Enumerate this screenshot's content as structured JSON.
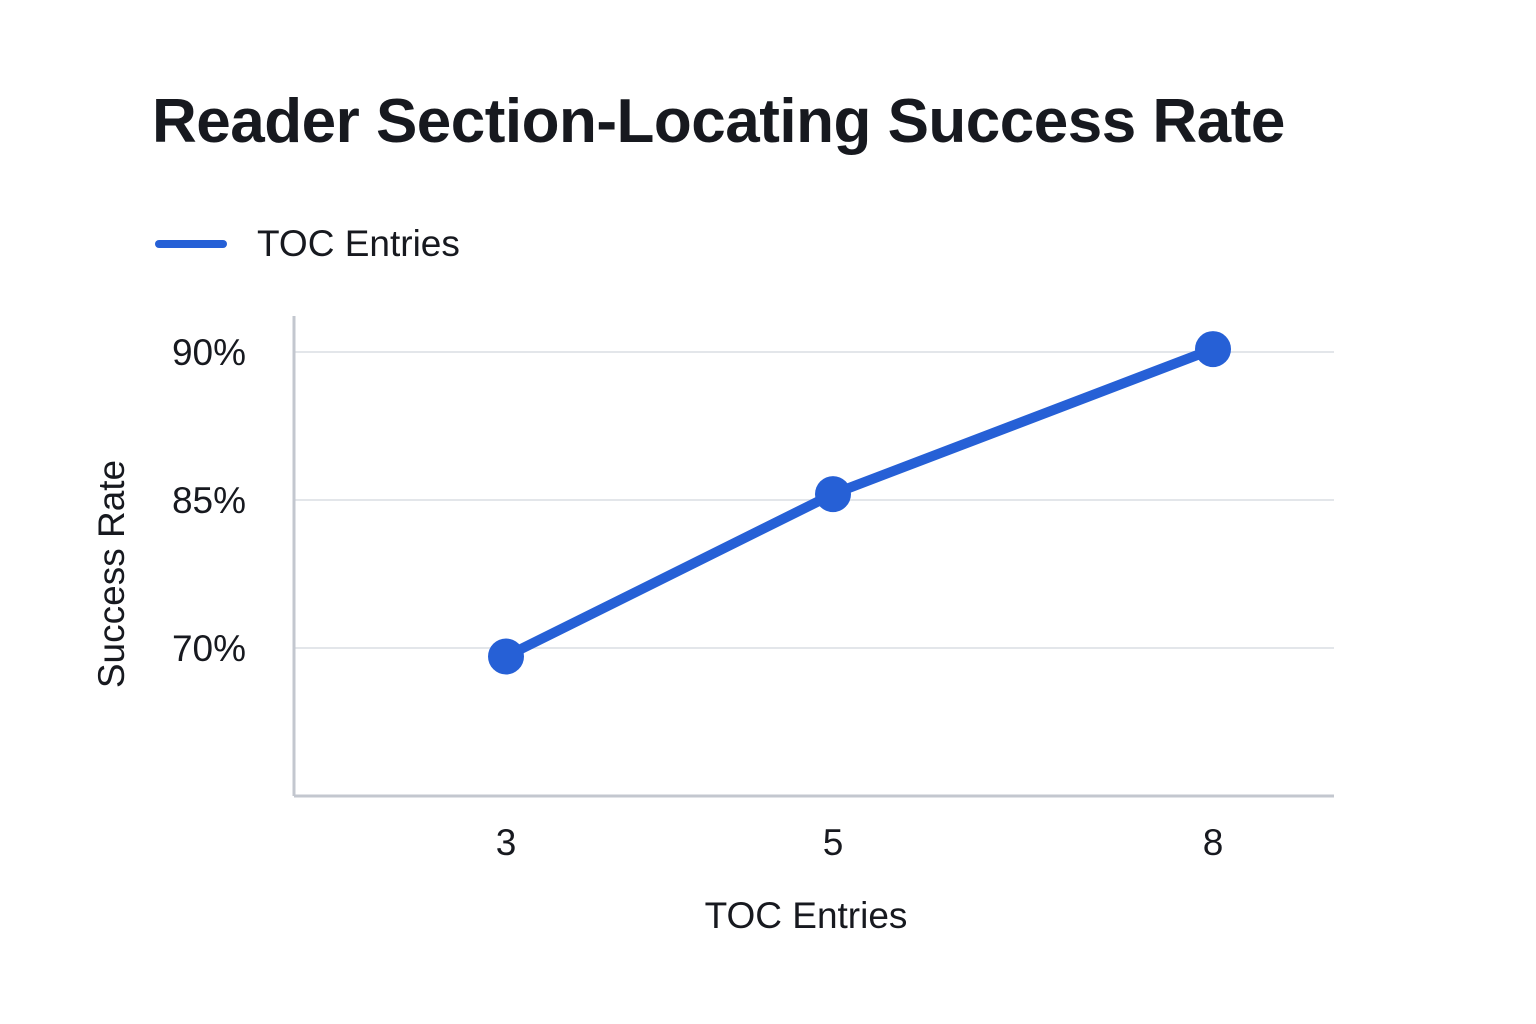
{
  "chart_data": {
    "type": "line",
    "title": "Reader Section-Locating Success Rate",
    "xlabel": "TOC Entries",
    "ylabel": "Success Rate",
    "categories": [
      "3",
      "5",
      "8"
    ],
    "series": [
      {
        "name": "TOC Entries",
        "color": "#2660d6",
        "values": [
          69.6,
          85.2,
          90.1
        ],
        "unit": "%"
      }
    ],
    "y_ticks": [
      {
        "value": 70,
        "label": "70%"
      },
      {
        "value": 85,
        "label": "85%"
      },
      {
        "value": 90,
        "label": "90%"
      }
    ],
    "ylim": [
      63,
      91.5
    ],
    "grid": true,
    "legend_position": "top-left"
  }
}
